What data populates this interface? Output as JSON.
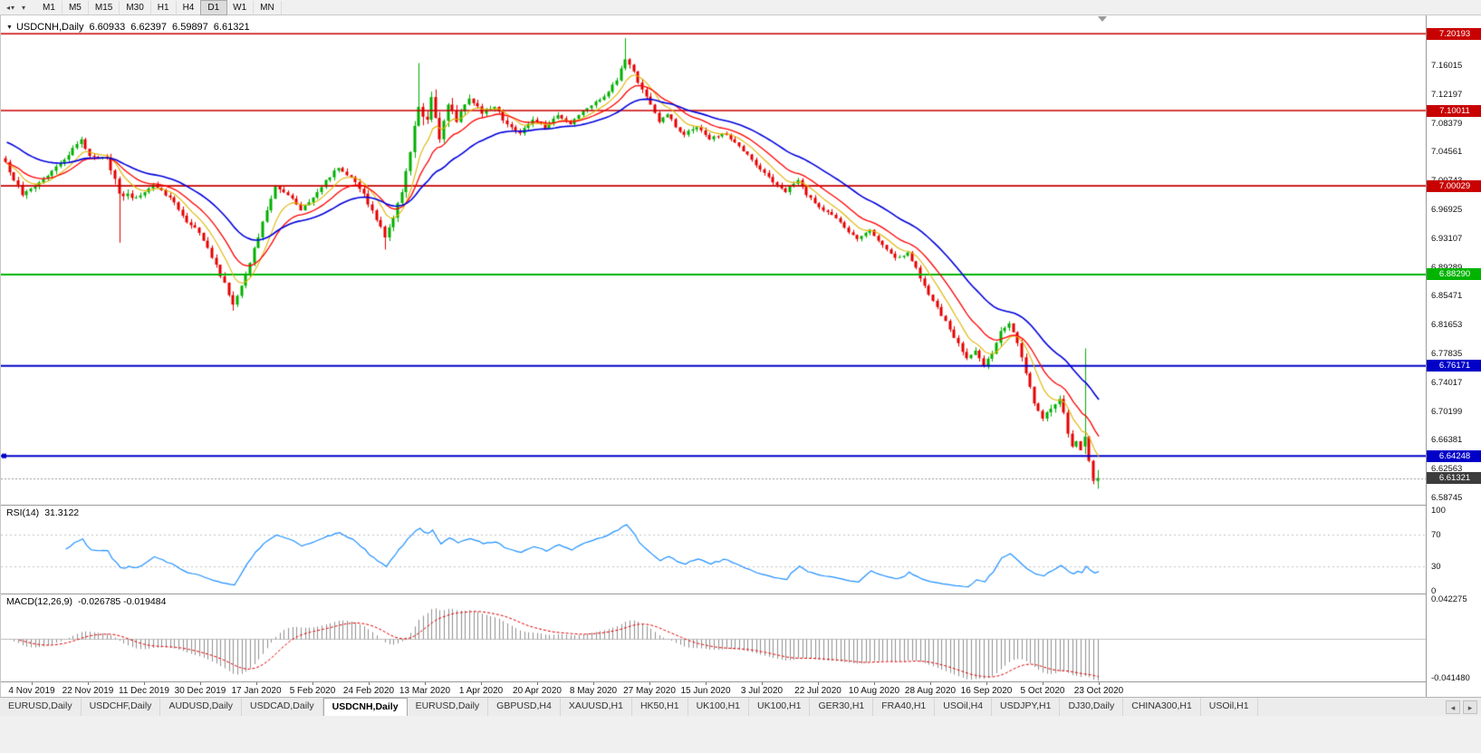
{
  "toolbar": {
    "icons": {
      "back": "◂",
      "caret": "▾"
    },
    "timeframes": [
      {
        "label": "M1"
      },
      {
        "label": "M5"
      },
      {
        "label": "M15"
      },
      {
        "label": "M30"
      },
      {
        "label": "H1"
      },
      {
        "label": "H4"
      },
      {
        "label": "D1",
        "active": true
      },
      {
        "label": "W1"
      },
      {
        "label": "MN"
      }
    ]
  },
  "chart": {
    "title": {
      "symbol": "USDCNH,Daily",
      "open": "6.60933",
      "high": "6.62397",
      "low": "6.59897",
      "close": "6.61321"
    },
    "price_scale": {
      "top": "7.16015",
      "bottom": "6.58745",
      "ticks": [
        "7.16015",
        "7.12197",
        "7.08379",
        "7.04561",
        "7.00743",
        "6.96925",
        "6.93107",
        "6.89289",
        "6.85471",
        "6.81653",
        "6.77835",
        "6.74017",
        "6.70199",
        "6.66381",
        "6.62563",
        "6.58745"
      ]
    },
    "levels": [
      {
        "label": "7.20193",
        "price": 7.20193,
        "color": "#c80000"
      },
      {
        "label": "7.10011",
        "price": 7.10011,
        "color": "#c80000"
      },
      {
        "label": "7.00029",
        "price": 7.00029,
        "color": "#c80000"
      },
      {
        "label": "6.88290",
        "price": 6.8829,
        "color": "#00b400"
      },
      {
        "label": "6.76171",
        "price": 6.76171,
        "color": "#0000c8"
      },
      {
        "label": "6.64248",
        "price": 6.64248,
        "color": "#0000c8"
      }
    ],
    "last_price": {
      "label": "6.61321",
      "price": 6.61321,
      "color": "#3c3c3c"
    },
    "dates": [
      "4 Nov 2019",
      "22 Nov 2019",
      "11 Dec 2019",
      "30 Dec 2019",
      "17 Jan 2020",
      "5 Feb 2020",
      "24 Feb 2020",
      "13 Mar 2020",
      "1 Apr 2020",
      "20 Apr 2020",
      "8 May 2020",
      "27 May 2020",
      "15 Jun 2020",
      "3 Jul 2020",
      "22 Jul 2020",
      "10 Aug 2020",
      "28 Aug 2020",
      "16 Sep 2020",
      "5 Oct 2020",
      "23 Oct 2020"
    ]
  },
  "indicators": {
    "rsi": {
      "label": "RSI(14)",
      "value": "31.3122",
      "scale": [
        "100",
        "70",
        "30",
        "0"
      ],
      "level_lines": [
        70,
        30
      ]
    },
    "macd": {
      "label": "MACD(12,26,9)",
      "values": "-0.026785 -0.019484",
      "scale_top": "0.042275",
      "scale_bottom": "-0.041480",
      "range": [
        -0.04148,
        0.042275
      ]
    }
  },
  "chart_data": {
    "type": "candlestick",
    "symbol": "USDCNH",
    "timeframe": "Daily",
    "visible_range": [
      "4 Nov 2019",
      "Nov 2020"
    ],
    "last_bar_ohlc": {
      "open": 6.60933,
      "high": 6.62397,
      "low": 6.59897,
      "close": 6.61321
    },
    "horizontal_levels": [
      7.20193,
      7.10011,
      7.00029,
      6.8829,
      6.76171,
      6.64248
    ],
    "price_axis": {
      "top_tick": 7.16015,
      "bottom_tick": 6.58745,
      "tick_step": 0.03818
    },
    "price": {
      "bars": 260,
      "anchors": [
        [
          0,
          7.032,
          0.007
        ],
        [
          4,
          6.988,
          0.007
        ],
        [
          8,
          7.005,
          0.006
        ],
        [
          13,
          7.03,
          0.006
        ],
        [
          18,
          7.062,
          0.007
        ],
        [
          20,
          7.04,
          0.006
        ],
        [
          24,
          7.038,
          0.005
        ],
        [
          27,
          6.99,
          0.012
        ],
        [
          31,
          6.985,
          0.006
        ],
        [
          35,
          7.002,
          0.005
        ],
        [
          39,
          6.985,
          0.005
        ],
        [
          43,
          6.952,
          0.006
        ],
        [
          46,
          6.938,
          0.006
        ],
        [
          49,
          6.905,
          0.007
        ],
        [
          52,
          6.872,
          0.007
        ],
        [
          54,
          6.843,
          0.008
        ],
        [
          56,
          6.868,
          0.008
        ],
        [
          59,
          6.918,
          0.008
        ],
        [
          62,
          6.968,
          0.007
        ],
        [
          64,
          7.0,
          0.006
        ],
        [
          67,
          6.988,
          0.006
        ],
        [
          70,
          6.968,
          0.006
        ],
        [
          73,
          6.985,
          0.006
        ],
        [
          76,
          7.008,
          0.006
        ],
        [
          79,
          7.024,
          0.006
        ],
        [
          82,
          7.012,
          0.006
        ],
        [
          85,
          6.99,
          0.007
        ],
        [
          88,
          6.955,
          0.008
        ],
        [
          90,
          6.932,
          0.009
        ],
        [
          92,
          6.958,
          0.009
        ],
        [
          94,
          6.992,
          0.01
        ],
        [
          96,
          7.045,
          0.013
        ],
        [
          98,
          7.105,
          0.016
        ],
        [
          100,
          7.088,
          0.014
        ],
        [
          101,
          7.118,
          0.013
        ],
        [
          103,
          7.062,
          0.013
        ],
        [
          105,
          7.108,
          0.012
        ],
        [
          107,
          7.085,
          0.01
        ],
        [
          110,
          7.116,
          0.009
        ],
        [
          113,
          7.096,
          0.008
        ],
        [
          116,
          7.105,
          0.007
        ],
        [
          119,
          7.082,
          0.007
        ],
        [
          122,
          7.07,
          0.006
        ],
        [
          125,
          7.088,
          0.006
        ],
        [
          128,
          7.076,
          0.006
        ],
        [
          131,
          7.094,
          0.006
        ],
        [
          134,
          7.082,
          0.005
        ],
        [
          137,
          7.1,
          0.005
        ],
        [
          140,
          7.112,
          0.005
        ],
        [
          143,
          7.125,
          0.005
        ],
        [
          145,
          7.14,
          0.006
        ],
        [
          147,
          7.168,
          0.009
        ],
        [
          149,
          7.152,
          0.008
        ],
        [
          151,
          7.128,
          0.007
        ],
        [
          153,
          7.108,
          0.007
        ],
        [
          155,
          7.085,
          0.006
        ],
        [
          157,
          7.095,
          0.006
        ],
        [
          159,
          7.078,
          0.005
        ],
        [
          161,
          7.068,
          0.005
        ],
        [
          164,
          7.078,
          0.005
        ],
        [
          167,
          7.062,
          0.005
        ],
        [
          170,
          7.07,
          0.005
        ],
        [
          173,
          7.058,
          0.005
        ],
        [
          176,
          7.042,
          0.005
        ],
        [
          179,
          7.022,
          0.005
        ],
        [
          182,
          7.005,
          0.005
        ],
        [
          185,
          6.992,
          0.005
        ],
        [
          188,
          7.008,
          0.005
        ],
        [
          190,
          6.988,
          0.005
        ],
        [
          193,
          6.972,
          0.005
        ],
        [
          196,
          6.962,
          0.005
        ],
        [
          199,
          6.945,
          0.005
        ],
        [
          202,
          6.93,
          0.005
        ],
        [
          205,
          6.942,
          0.005
        ],
        [
          208,
          6.922,
          0.005
        ],
        [
          211,
          6.905,
          0.005
        ],
        [
          214,
          6.912,
          0.005
        ],
        [
          216,
          6.892,
          0.006
        ],
        [
          218,
          6.868,
          0.006
        ],
        [
          220,
          6.848,
          0.006
        ],
        [
          222,
          6.828,
          0.006
        ],
        [
          224,
          6.81,
          0.006
        ],
        [
          226,
          6.792,
          0.006
        ],
        [
          228,
          6.772,
          0.007
        ],
        [
          230,
          6.782,
          0.007
        ],
        [
          232,
          6.762,
          0.007
        ],
        [
          234,
          6.778,
          0.007
        ],
        [
          236,
          6.808,
          0.007
        ],
        [
          238,
          6.818,
          0.006
        ],
        [
          240,
          6.792,
          0.006
        ],
        [
          242,
          6.752,
          0.008
        ],
        [
          244,
          6.712,
          0.009
        ],
        [
          246,
          6.692,
          0.008
        ],
        [
          248,
          6.705,
          0.007
        ],
        [
          250,
          6.718,
          0.007
        ],
        [
          251,
          6.7,
          0.007
        ],
        [
          252,
          6.672,
          0.007
        ],
        [
          253,
          6.655,
          0.007
        ],
        [
          254,
          6.662,
          0.006
        ],
        [
          255,
          6.65,
          0.006
        ],
        [
          256,
          6.668,
          0.006
        ],
        [
          257,
          6.636,
          0.006
        ],
        [
          258,
          6.6095,
          0.006
        ],
        [
          259,
          6.61321,
          0.005
        ]
      ],
      "special_bars": {
        "27": {
          "l": 6.925
        },
        "54": {
          "l": 6.835
        },
        "90": {
          "l": 6.916
        },
        "98": {
          "h": 7.163
        },
        "147": {
          "h": 7.196
        },
        "256": {
          "o": 6.655,
          "h": 6.785,
          "l": 6.645,
          "c": 6.668
        },
        "259": {
          "o": 6.60933,
          "h": 6.62397,
          "l": 6.59897,
          "c": 6.61321
        }
      }
    },
    "moving_averages": [
      {
        "name": "fast",
        "period": 7,
        "color": "#e0b400",
        "seed": 7.03
      },
      {
        "name": "mid",
        "period": 14,
        "color": "#ff0000",
        "seed": 7.03
      },
      {
        "name": "slow",
        "period": 30,
        "color": "#0000dc",
        "seed": 7.06
      }
    ],
    "indicators": {
      "rsi": {
        "period": 14,
        "last": 31.3122
      },
      "macd": {
        "fast": 12,
        "slow": 26,
        "signal": 9,
        "last": -0.026785,
        "signal_last": -0.019484
      }
    }
  },
  "colors": {
    "up": "#00b000",
    "down": "#e60000",
    "rsi": "#1e90ff",
    "macd_hist": "#909090",
    "macd_signal": "#e00000",
    "last_price_line": "#999999"
  },
  "tabs": {
    "icons": {
      "scroll_left": "◂",
      "scroll_right": "▸"
    },
    "items": [
      {
        "label": "EURUSD,Daily"
      },
      {
        "label": "USDCHF,Daily"
      },
      {
        "label": "AUDUSD,Daily"
      },
      {
        "label": "USDCAD,Daily"
      },
      {
        "label": "USDCNH,Daily",
        "active": true
      },
      {
        "label": "EURUSD,Daily"
      },
      {
        "label": "GBPUSD,H4"
      },
      {
        "label": "XAUUSD,H1"
      },
      {
        "label": "HK50,H1"
      },
      {
        "label": "UK100,H1"
      },
      {
        "label": "UK100,H1"
      },
      {
        "label": "GER30,H1"
      },
      {
        "label": "FRA40,H1"
      },
      {
        "label": "USOil,H4"
      },
      {
        "label": "USDJPY,H1"
      },
      {
        "label": "DJ30,Daily"
      },
      {
        "label": "CHINA300,H1"
      },
      {
        "label": "USOil,H1"
      }
    ]
  }
}
